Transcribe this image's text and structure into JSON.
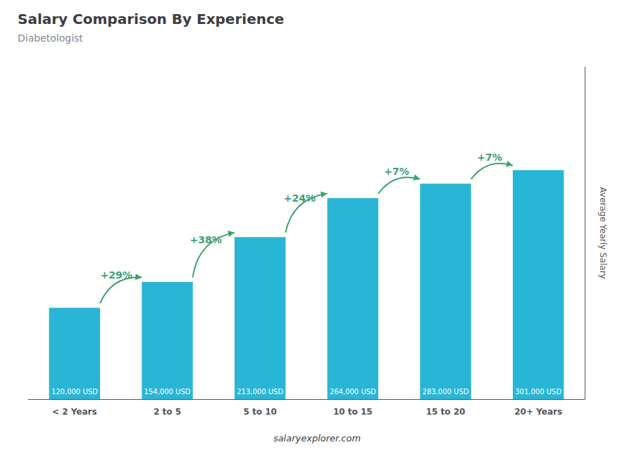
{
  "chart_data": {
    "type": "bar",
    "title": "Salary Comparison By Experience",
    "subtitle": "Diabetologist",
    "ylabel": "Average Yearly Salary",
    "categories": [
      "< 2 Years",
      "2 to 5",
      "5 to 10",
      "10 to 15",
      "15 to 20",
      "20+ Years"
    ],
    "values": [
      120000,
      154000,
      213000,
      264000,
      283000,
      301000
    ],
    "value_labels": [
      "120,000 USD",
      "154,000 USD",
      "213,000 USD",
      "264,000 USD",
      "283,000 USD",
      "301,000 USD"
    ],
    "data_labels": true,
    "annotations": [
      "+29%",
      "+38%",
      "+24%",
      "+7%",
      "+7%"
    ],
    "footer": "salaryexplorer.com",
    "color": "#29B6D6",
    "ylim": [
      0,
      436450
    ],
    "grid": false,
    "tick_labels": "x"
  }
}
